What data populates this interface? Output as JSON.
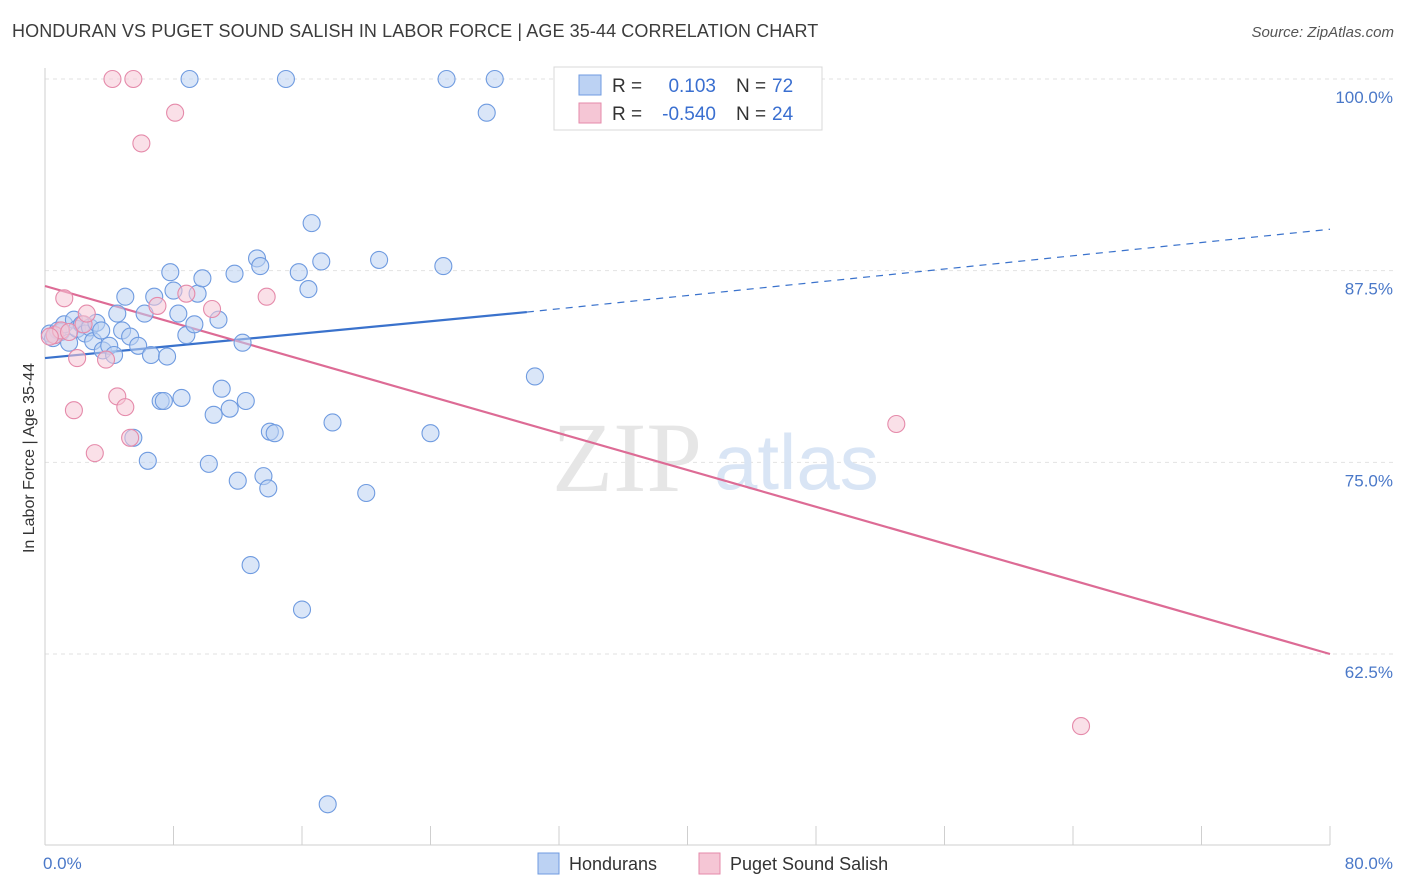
{
  "title": "HONDURAN VS PUGET SOUND SALISH IN LABOR FORCE | AGE 35-44 CORRELATION CHART",
  "source": "Source: ZipAtlas.com",
  "watermark": {
    "zip": "ZIP",
    "atlas": "atlas"
  },
  "chart_data": {
    "type": "scatter",
    "ylabel": "In Labor Force | Age 35-44",
    "xlim": [
      0,
      80
    ],
    "ylim": [
      50,
      101
    ],
    "x_tick_labels": [
      "0.0%",
      "80.0%"
    ],
    "y_ticks": [
      {
        "value": 62.5,
        "label": "62.5%"
      },
      {
        "value": 75.0,
        "label": "75.0%"
      },
      {
        "value": 87.5,
        "label": "87.5%"
      },
      {
        "value": 100.0,
        "label": "100.0%"
      }
    ],
    "legend": {
      "rows": [
        {
          "r_label": "R =",
          "r_value": "0.103",
          "n_label": "N =",
          "n_value": "72"
        },
        {
          "r_label": "R =",
          "r_value": "-0.540",
          "n_label": "N =",
          "n_value": "24"
        }
      ]
    },
    "series": [
      {
        "name": "Hondurans",
        "color": "#6f9be0",
        "fill": "#bcd2f3",
        "trend": {
          "x0": 0,
          "y0": 81.8,
          "x1": 30,
          "y1": 84.8,
          "dash_to_x": 80,
          "dash_to_y": 90.2
        },
        "points": [
          [
            0.3,
            83.4
          ],
          [
            0.5,
            83.1
          ],
          [
            0.8,
            83.6
          ],
          [
            1.0,
            83.5
          ],
          [
            1.2,
            84.0
          ],
          [
            1.5,
            82.8
          ],
          [
            1.8,
            84.3
          ],
          [
            2.0,
            83.7
          ],
          [
            2.3,
            84.0
          ],
          [
            2.5,
            83.4
          ],
          [
            2.8,
            83.8
          ],
          [
            3.0,
            82.9
          ],
          [
            3.2,
            84.1
          ],
          [
            3.5,
            83.6
          ],
          [
            3.6,
            82.3
          ],
          [
            4.0,
            82.6
          ],
          [
            4.3,
            82.0
          ],
          [
            4.5,
            84.7
          ],
          [
            4.8,
            83.6
          ],
          [
            5.0,
            85.8
          ],
          [
            5.3,
            83.2
          ],
          [
            5.5,
            76.6
          ],
          [
            5.8,
            82.6
          ],
          [
            6.2,
            84.7
          ],
          [
            6.4,
            75.1
          ],
          [
            6.6,
            82.0
          ],
          [
            6.8,
            85.8
          ],
          [
            7.2,
            79.0
          ],
          [
            7.4,
            79.0
          ],
          [
            7.6,
            81.9
          ],
          [
            7.8,
            87.4
          ],
          [
            8.0,
            86.2
          ],
          [
            8.3,
            84.7
          ],
          [
            8.5,
            79.2
          ],
          [
            8.8,
            83.3
          ],
          [
            9.0,
            100.0
          ],
          [
            9.3,
            84.0
          ],
          [
            9.5,
            86.0
          ],
          [
            9.8,
            87.0
          ],
          [
            10.2,
            74.9
          ],
          [
            10.5,
            78.1
          ],
          [
            10.8,
            84.3
          ],
          [
            11.0,
            79.8
          ],
          [
            11.5,
            78.5
          ],
          [
            11.8,
            87.3
          ],
          [
            12.0,
            73.8
          ],
          [
            12.3,
            82.8
          ],
          [
            12.5,
            79.0
          ],
          [
            12.8,
            68.3
          ],
          [
            13.2,
            88.3
          ],
          [
            13.4,
            87.8
          ],
          [
            13.6,
            74.1
          ],
          [
            13.9,
            73.3
          ],
          [
            14.0,
            77.0
          ],
          [
            14.3,
            76.9
          ],
          [
            15.0,
            100.0
          ],
          [
            15.8,
            87.4
          ],
          [
            16.0,
            65.4
          ],
          [
            16.4,
            86.3
          ],
          [
            16.6,
            90.6
          ],
          [
            17.2,
            88.1
          ],
          [
            17.6,
            52.7
          ],
          [
            17.9,
            77.6
          ],
          [
            20.0,
            73.0
          ],
          [
            20.8,
            88.2
          ],
          [
            24.0,
            76.9
          ],
          [
            24.8,
            87.8
          ],
          [
            25.0,
            100.0
          ],
          [
            27.5,
            97.8
          ],
          [
            28.0,
            100.0
          ],
          [
            30.5,
            80.6
          ],
          [
            0.6,
            83.3
          ]
        ]
      },
      {
        "name": "Puget Sound Salish",
        "color": "#e58aaa",
        "fill": "#f5c6d5",
        "trend": {
          "x0": 0,
          "y0": 86.5,
          "x1": 80,
          "y1": 62.5
        },
        "points": [
          [
            0.6,
            83.3
          ],
          [
            1.0,
            83.6
          ],
          [
            1.2,
            85.7
          ],
          [
            1.5,
            83.5
          ],
          [
            1.8,
            78.4
          ],
          [
            2.0,
            81.8
          ],
          [
            2.4,
            84.0
          ],
          [
            2.6,
            84.7
          ],
          [
            3.1,
            75.6
          ],
          [
            3.8,
            81.7
          ],
          [
            4.5,
            79.3
          ],
          [
            5.0,
            78.6
          ],
          [
            5.3,
            76.6
          ],
          [
            4.2,
            100.0
          ],
          [
            5.5,
            100.0
          ],
          [
            6.0,
            95.8
          ],
          [
            7.0,
            85.2
          ],
          [
            8.1,
            97.8
          ],
          [
            8.8,
            86.0
          ],
          [
            10.4,
            85.0
          ],
          [
            13.8,
            85.8
          ],
          [
            53.0,
            77.5
          ],
          [
            64.5,
            57.8
          ],
          [
            0.3,
            83.2
          ]
        ]
      }
    ]
  }
}
